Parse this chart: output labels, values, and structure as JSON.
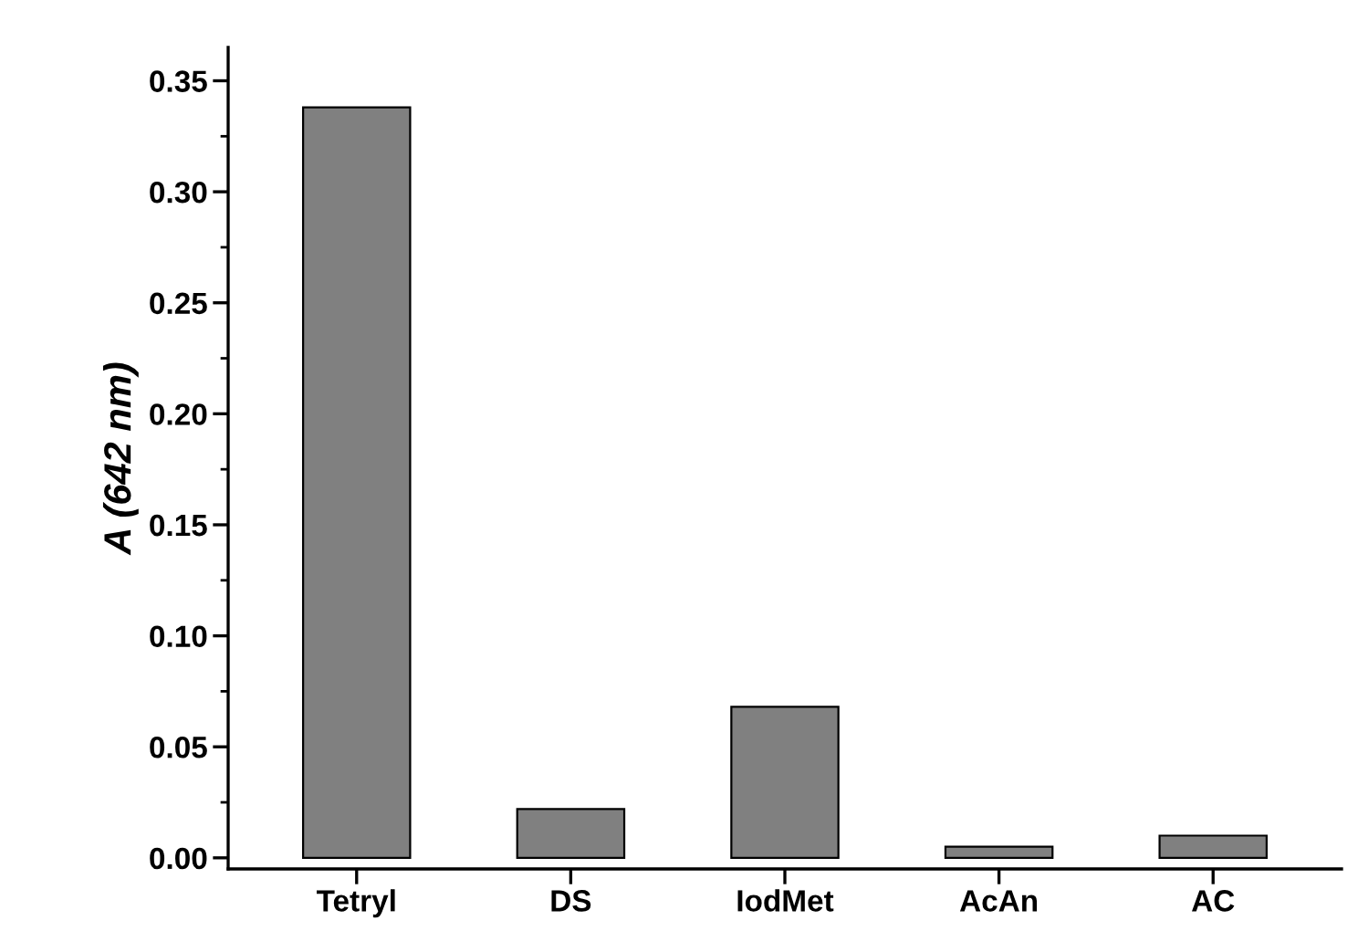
{
  "chart_data": {
    "type": "bar",
    "ylabel": "A (642 nm)",
    "categories": [
      "Tetryl",
      "DS",
      "IodMet",
      "AcAn",
      "AC"
    ],
    "values": [
      0.338,
      0.022,
      0.068,
      0.005,
      0.01
    ],
    "color": "#808080",
    "ylim": [
      -0.005,
      0.365
    ],
    "yticks": [
      {
        "value": 0.0,
        "label": "0.00"
      },
      {
        "value": 0.025,
        "label": null
      },
      {
        "value": 0.05,
        "label": "0.05"
      },
      {
        "value": 0.075,
        "label": null
      },
      {
        "value": 0.1,
        "label": "0.10"
      },
      {
        "value": 0.125,
        "label": null
      },
      {
        "value": 0.15,
        "label": "0.15"
      },
      {
        "value": 0.175,
        "label": null
      },
      {
        "value": 0.2,
        "label": "0.20"
      },
      {
        "value": 0.225,
        "label": null
      },
      {
        "value": 0.25,
        "label": "0.25"
      },
      {
        "value": 0.275,
        "label": null
      },
      {
        "value": 0.3,
        "label": "0.30"
      },
      {
        "value": 0.325,
        "label": null
      },
      {
        "value": 0.35,
        "label": "0.35"
      }
    ],
    "grid": false,
    "legend": false
  }
}
